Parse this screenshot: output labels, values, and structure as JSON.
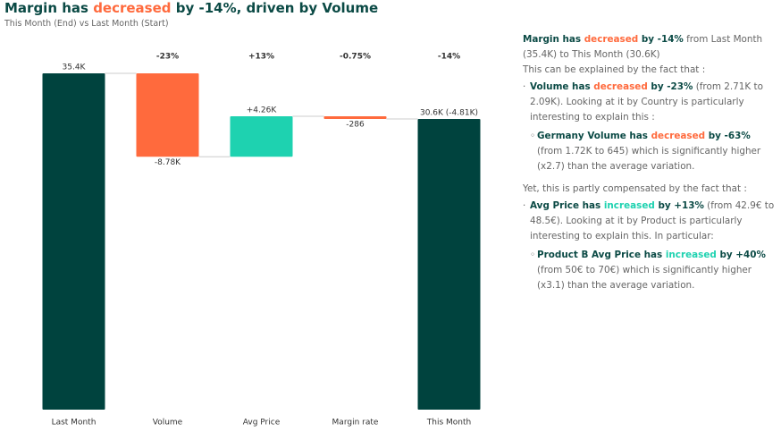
{
  "chart_data": {
    "type": "waterfall",
    "title": [
      {
        "text": "Margin has "
      },
      {
        "text": "decreased",
        "tone": "down"
      },
      {
        "text": " by -14%, driven by Volume"
      }
    ],
    "subtitle": "This Month (End) vs Last Month (Start)",
    "categories": [
      "Last Month",
      "Volume",
      "Avg Price",
      "Margin rate",
      "This Month"
    ],
    "kinds": [
      "total",
      "delta",
      "delta",
      "delta",
      "total"
    ],
    "values": [
      35400,
      -8780,
      4260,
      -286,
      30600
    ],
    "value_labels": [
      "35.4K",
      "-8.78K",
      "+4.26K",
      "-286",
      "30.6K (-4.81K)"
    ],
    "change_labels": [
      null,
      "-23%",
      "+13%",
      "-0.75%",
      "-14%"
    ],
    "colors": {
      "total": "#00433e",
      "down": "#ff6a3d",
      "up": "#1ed2b0"
    }
  },
  "insights": [
    {
      "level": 0,
      "parts": [
        {
          "text": "Margin has ",
          "bold": true
        },
        {
          "text": "decreased",
          "bold": true,
          "tone": "down"
        },
        {
          "text": " by -14%",
          "bold": true
        },
        {
          "text": " from Last Month (35.4K) to This Month (30.6K)"
        }
      ]
    },
    {
      "level": 0,
      "parts": [
        {
          "text": "This can be explained by the fact that :"
        }
      ]
    },
    {
      "level": 1,
      "parts": [
        {
          "text": "Volume has ",
          "bold": true
        },
        {
          "text": "decreased",
          "bold": true,
          "tone": "down"
        },
        {
          "text": " by -23%",
          "bold": true
        },
        {
          "text": " (from 2.71K to 2.09K). Looking at it by Country is particularly interesting to explain this :"
        }
      ]
    },
    {
      "level": 2,
      "parts": [
        {
          "text": "Germany Volume has ",
          "bold": true
        },
        {
          "text": "decreased",
          "bold": true,
          "tone": "down"
        },
        {
          "text": " by -63%",
          "bold": true
        },
        {
          "text": " (from 1.72K to 645) which is significantly higher (x2.7) than the average variation."
        }
      ]
    },
    {
      "level": 0,
      "parts": [
        {
          "text": "Yet, this is partly compensated by the fact that :"
        }
      ]
    },
    {
      "level": 1,
      "parts": [
        {
          "text": "Avg Price has ",
          "bold": true
        },
        {
          "text": "increased",
          "bold": true,
          "tone": "up"
        },
        {
          "text": " by +13%",
          "bold": true
        },
        {
          "text": " (from 42.9€ to 48.5€). Looking at it by Product is particularly interesting to explain this. In particular:"
        }
      ]
    },
    {
      "level": 2,
      "parts": [
        {
          "text": "Product B Avg Price has ",
          "bold": true
        },
        {
          "text": "increased",
          "bold": true,
          "tone": "up"
        },
        {
          "text": " by +40%",
          "bold": true
        },
        {
          "text": " (from 50€ to 70€) which is significantly higher (x3.1) than the average variation."
        }
      ]
    }
  ]
}
